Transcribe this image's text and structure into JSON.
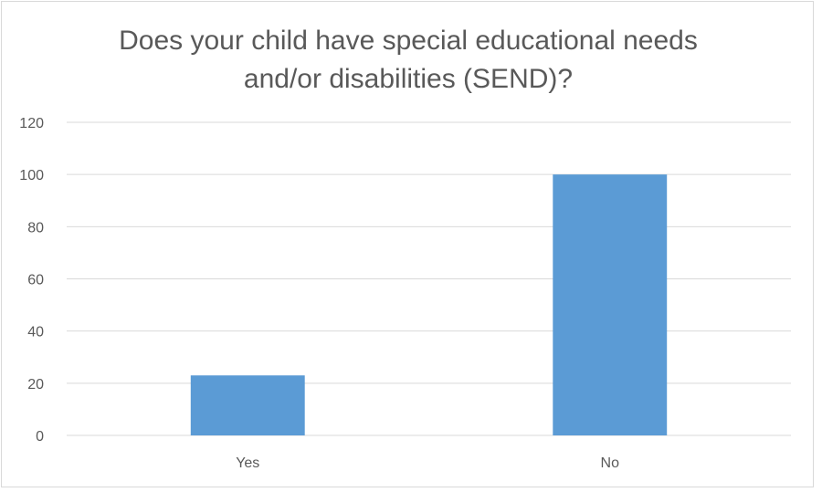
{
  "chart_data": {
    "type": "bar",
    "title": "Does your child have special educational needs and/or disabilities (SEND)?",
    "title_lines": [
      "Does your child have special educational needs",
      "and/or disabilities (SEND)?"
    ],
    "categories": [
      "Yes",
      "No"
    ],
    "values": [
      23,
      100
    ],
    "ylim": [
      0,
      120
    ],
    "yticks": [
      0,
      20,
      40,
      60,
      80,
      100,
      120
    ],
    "xlabel": "",
    "ylabel": "",
    "grid": true,
    "legend": "none",
    "colors": {
      "bar": "#5b9bd5",
      "grid": "#d9d9d9",
      "axis": "#d9d9d9",
      "text": "#595959"
    }
  }
}
